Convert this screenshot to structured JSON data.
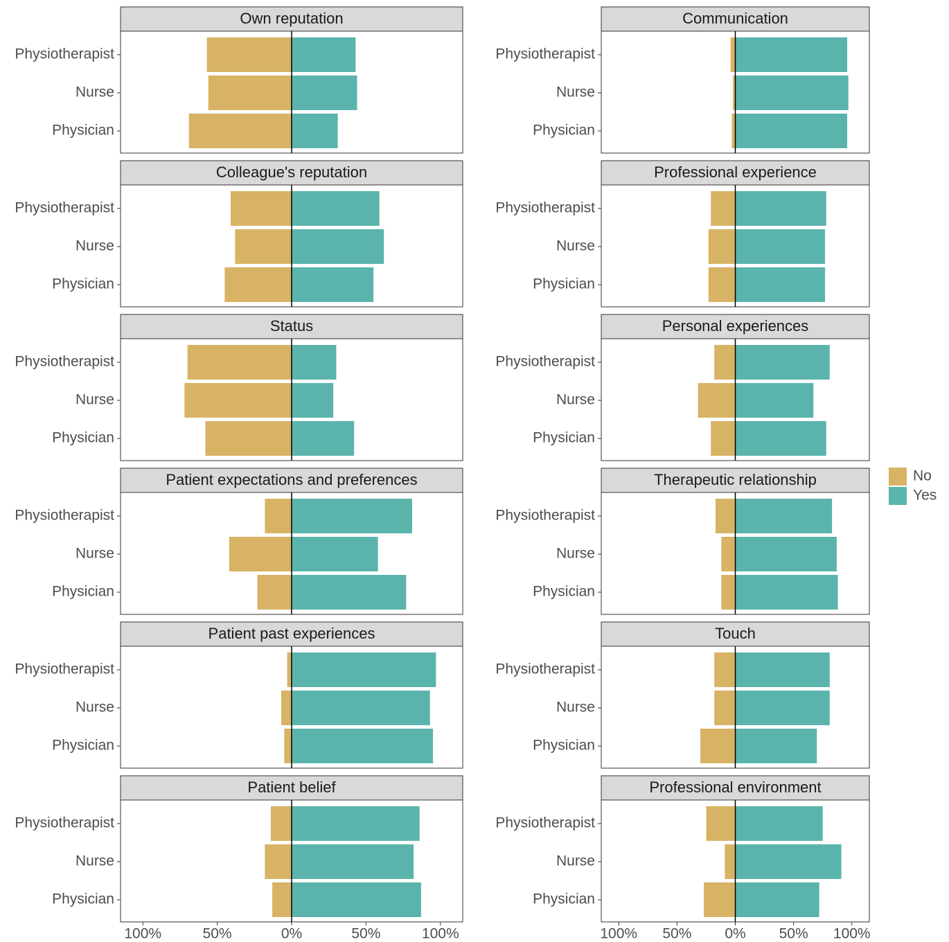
{
  "chart_data": [
    {
      "type": "bar",
      "title": "Own reputation",
      "categories": [
        "Physiotherapist",
        "Nurse",
        "Physician"
      ],
      "xlim": [
        -115,
        115
      ],
      "series": [
        {
          "name": "No",
          "color": "#d8b365",
          "values": [
            -57,
            -56,
            -69
          ]
        },
        {
          "name": "Yes",
          "color": "#5ab4ac",
          "values": [
            43,
            44,
            31
          ]
        }
      ]
    },
    {
      "type": "bar",
      "title": "Communication",
      "categories": [
        "Physiotherapist",
        "Nurse",
        "Physician"
      ],
      "xlim": [
        -115,
        115
      ],
      "series": [
        {
          "values": [
            -4,
            -2,
            -3
          ]
        },
        {
          "values": [
            96,
            97,
            96
          ]
        }
      ]
    },
    {
      "type": "bar",
      "title": "Colleague's reputation",
      "categories": [
        "Physiotherapist",
        "Nurse",
        "Physician"
      ],
      "xlim": [
        -115,
        115
      ],
      "series": [
        {
          "values": [
            -41,
            -38,
            -45
          ]
        },
        {
          "values": [
            59,
            62,
            55
          ]
        }
      ]
    },
    {
      "type": "bar",
      "title": "Professional experience",
      "categories": [
        "Physiotherapist",
        "Nurse",
        "Physician"
      ],
      "xlim": [
        -115,
        115
      ],
      "series": [
        {
          "values": [
            -21,
            -23,
            -23
          ]
        },
        {
          "values": [
            78,
            77,
            77
          ]
        }
      ]
    },
    {
      "type": "bar",
      "title": "Status",
      "categories": [
        "Physiotherapist",
        "Nurse",
        "Physician"
      ],
      "xlim": [
        -115,
        115
      ],
      "series": [
        {
          "values": [
            -70,
            -72,
            -58
          ]
        },
        {
          "values": [
            30,
            28,
            42
          ]
        }
      ]
    },
    {
      "type": "bar",
      "title": "Personal experiences",
      "categories": [
        "Physiotherapist",
        "Nurse",
        "Physician"
      ],
      "xlim": [
        -115,
        115
      ],
      "series": [
        {
          "values": [
            -18,
            -32,
            -21
          ]
        },
        {
          "values": [
            81,
            67,
            78
          ]
        }
      ]
    },
    {
      "type": "bar",
      "title": "Patient expectations and preferences",
      "categories": [
        "Physiotherapist",
        "Nurse",
        "Physician"
      ],
      "xlim": [
        -115,
        115
      ],
      "series": [
        {
          "values": [
            -18,
            -42,
            -23
          ]
        },
        {
          "values": [
            81,
            58,
            77
          ]
        }
      ]
    },
    {
      "type": "bar",
      "title": "Therapeutic relationship",
      "categories": [
        "Physiotherapist",
        "Nurse",
        "Physician"
      ],
      "xlim": [
        -115,
        115
      ],
      "series": [
        {
          "values": [
            -17,
            -12,
            -12
          ]
        },
        {
          "values": [
            83,
            87,
            88
          ]
        }
      ]
    },
    {
      "type": "bar",
      "title": "Patient past experiences",
      "categories": [
        "Physiotherapist",
        "Nurse",
        "Physician"
      ],
      "xlim": [
        -115,
        115
      ],
      "series": [
        {
          "values": [
            -3,
            -7,
            -5
          ]
        },
        {
          "values": [
            97,
            93,
            95
          ]
        }
      ]
    },
    {
      "type": "bar",
      "title": "Touch",
      "categories": [
        "Physiotherapist",
        "Nurse",
        "Physician"
      ],
      "xlim": [
        -115,
        115
      ],
      "series": [
        {
          "values": [
            -18,
            -18,
            -30
          ]
        },
        {
          "values": [
            81,
            81,
            70
          ]
        }
      ]
    },
    {
      "type": "bar",
      "title": "Patient belief",
      "categories": [
        "Physiotherapist",
        "Nurse",
        "Physician"
      ],
      "xlim": [
        -115,
        115
      ],
      "series": [
        {
          "values": [
            -14,
            -18,
            -13
          ]
        },
        {
          "values": [
            86,
            82,
            87
          ]
        }
      ],
      "xticks": [
        {
          "value": -100,
          "label": "100%"
        },
        {
          "value": -50,
          "label": "50%"
        },
        {
          "value": 0,
          "label": "0%"
        },
        {
          "value": 50,
          "label": "50%"
        },
        {
          "value": 100,
          "label": "100%"
        }
      ]
    },
    {
      "type": "bar",
      "title": "Professional environment",
      "categories": [
        "Physiotherapist",
        "Nurse",
        "Physician"
      ],
      "xlim": [
        -115,
        115
      ],
      "series": [
        {
          "values": [
            -25,
            -9,
            -27
          ]
        },
        {
          "values": [
            75,
            91,
            72
          ]
        }
      ],
      "xticks": [
        {
          "value": -100,
          "label": "100%"
        },
        {
          "value": -50,
          "label": "50%"
        },
        {
          "value": 0,
          "label": "0%"
        },
        {
          "value": 50,
          "label": "50%"
        },
        {
          "value": 100,
          "label": "100%"
        }
      ]
    }
  ]
}
